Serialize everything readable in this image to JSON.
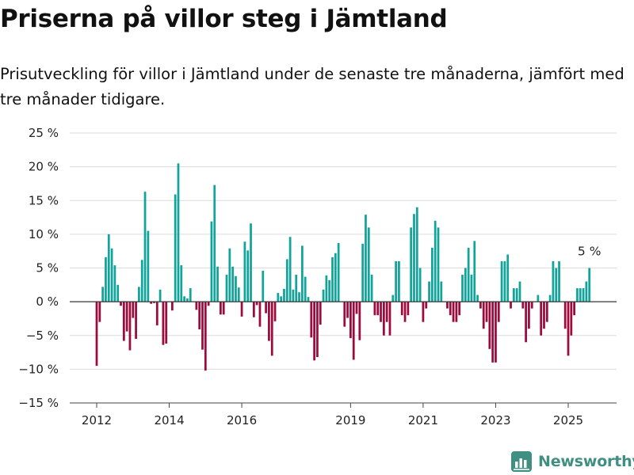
{
  "title": "Priserna på villor steg i Jämtland",
  "subtitle": "Prisutveckling för villor i Jämtland under de senaste tre månaderna, jämfört med tre månader tidigare.",
  "brand": "Newsworthy",
  "colors": {
    "positive": "#12a39a",
    "negative": "#9d0a3c",
    "brand": "#3f8f82"
  },
  "chart_data": {
    "type": "bar",
    "y_unit": "%",
    "ylim": [
      -15,
      25
    ],
    "y_ticks": [
      {
        "v": 25,
        "label": "25 %"
      },
      {
        "v": 20,
        "label": "20 %"
      },
      {
        "v": 15,
        "label": "15 %"
      },
      {
        "v": 10,
        "label": "10 %"
      },
      {
        "v": 5,
        "label": "5 %"
      },
      {
        "v": 0,
        "label": "0 %"
      },
      {
        "v": -5,
        "label": "−5 %"
      },
      {
        "v": -10,
        "label": "−10 %"
      },
      {
        "v": -15,
        "label": "−15 %"
      }
    ],
    "x_ticks": [
      {
        "v": 2012,
        "label": "2012"
      },
      {
        "v": 2014,
        "label": "2014"
      },
      {
        "v": 2016,
        "label": "2016"
      },
      {
        "v": 2019,
        "label": "2019"
      },
      {
        "v": 2021,
        "label": "2021"
      },
      {
        "v": 2023,
        "label": "2023"
      },
      {
        "v": 2025,
        "label": "2025"
      }
    ],
    "x_start": 2011.0,
    "x_end": 2026.2,
    "first_bar": 2012.0,
    "bar_step": 0.0833333,
    "grid": true,
    "values": [
      -9.5,
      -3,
      2.2,
      6.6,
      10,
      7.9,
      5.4,
      2.5,
      -0.6,
      -5.8,
      -4.4,
      -7.2,
      -2.4,
      -5.5,
      2.2,
      6.2,
      16.3,
      10.5,
      -0.3,
      -0.2,
      -3.5,
      1.8,
      -6.4,
      -6.2,
      0,
      -1.3,
      15.9,
      20.5,
      5.4,
      0.8,
      0.5,
      2,
      0,
      -1.2,
      -4.1,
      -7.1,
      -10.2,
      -0.6,
      11.9,
      17.3,
      5.2,
      -1.9,
      -1.9,
      4,
      7.9,
      5.2,
      3.8,
      2.1,
      -2.2,
      8.9,
      7.6,
      11.6,
      -2.3,
      -0.5,
      -3.7,
      4.6,
      -1.7,
      -5.8,
      -8,
      -2.9,
      1.3,
      0.8,
      1.9,
      6.3,
      9.6,
      1.8,
      4,
      1.4,
      8.3,
      3.7,
      0.7,
      -5.3,
      -8.7,
      -8.2,
      -3.4,
      1.8,
      3.9,
      3.2,
      6.6,
      7.2,
      8.7,
      0,
      -3.7,
      -2.4,
      -5.4,
      -8.6,
      -1.8,
      -5.7,
      8.6,
      12.9,
      11,
      4,
      -2,
      -2,
      -3,
      -5,
      -3,
      -5,
      1,
      6,
      6,
      -2,
      -3,
      -2,
      11,
      13,
      14,
      5,
      -3,
      -1,
      3,
      8,
      12,
      11,
      3,
      0,
      -1,
      -2,
      -3,
      -3,
      -2,
      4,
      5,
      8,
      4,
      9,
      1,
      -1,
      -4,
      -3,
      -7,
      -9,
      -9,
      -3,
      6,
      6,
      7,
      -1,
      2,
      2,
      3,
      -1,
      -6,
      -4,
      -1,
      0,
      1,
      -5,
      -4,
      -3,
      1,
      6,
      5,
      6,
      0,
      -4,
      -8,
      -5,
      -2,
      2,
      2,
      2,
      3,
      5
    ],
    "annotations": [
      {
        "label": "5 %",
        "target": "last"
      }
    ]
  }
}
